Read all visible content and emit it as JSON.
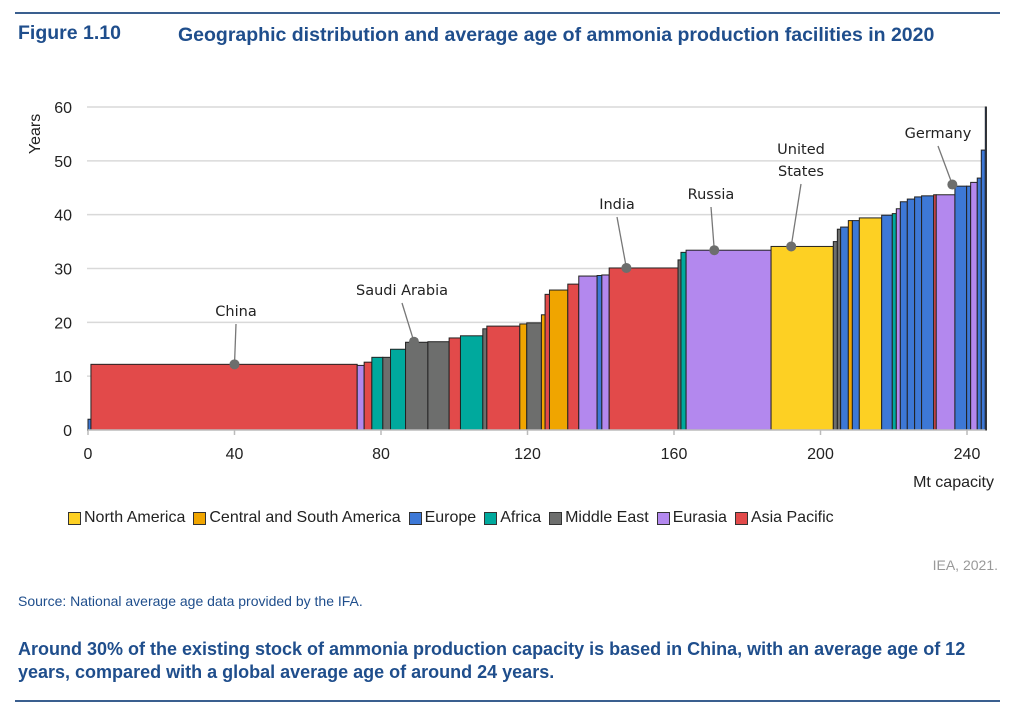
{
  "figure": {
    "number": "Figure 1.10",
    "title": "Geographic distribution and average age of ammonia production facilities in 2020"
  },
  "chart_data": {
    "type": "bar",
    "subtype": "variable-width (Marimekko-style) bars sorted by age",
    "ylabel": "Years",
    "xlabel": "Mt capacity",
    "xlim": [
      0,
      245
    ],
    "ylim": [
      0,
      60
    ],
    "x_ticks": [
      0,
      40,
      80,
      120,
      160,
      200,
      240
    ],
    "y_ticks": [
      0,
      10,
      20,
      30,
      40,
      50,
      60
    ],
    "grid": "horizontal",
    "legend_position": "bottom",
    "regions": [
      {
        "key": "NA",
        "name": "North America",
        "color": "#fdd023"
      },
      {
        "key": "CSA",
        "name": "Central and South America",
        "color": "#f0a500"
      },
      {
        "key": "EU",
        "name": "Europe",
        "color": "#3d78d6"
      },
      {
        "key": "AF",
        "name": "Africa",
        "color": "#00a99d"
      },
      {
        "key": "ME",
        "name": "Middle East",
        "color": "#6d6e6d"
      },
      {
        "key": "EA",
        "name": "Eurasia",
        "color": "#b388ee"
      },
      {
        "key": "AP",
        "name": "Asia Pacific",
        "color": "#e24a4a"
      }
    ],
    "bars_columns": [
      "start_mt",
      "end_mt",
      "age_years",
      "region"
    ],
    "bars": [
      [
        0,
        0.8,
        2.0,
        "EU"
      ],
      [
        0.8,
        73.5,
        12.2,
        "AP"
      ],
      [
        73.5,
        75.4,
        12.0,
        "EA"
      ],
      [
        75.4,
        77.5,
        12.6,
        "AP"
      ],
      [
        77.5,
        80.5,
        13.5,
        "AF"
      ],
      [
        80.5,
        82.6,
        13.5,
        "ME"
      ],
      [
        82.6,
        86.7,
        15.0,
        "AF"
      ],
      [
        86.7,
        92.8,
        16.3,
        "ME"
      ],
      [
        92.8,
        98.6,
        16.4,
        "ME"
      ],
      [
        98.6,
        101.7,
        17.1,
        "AP"
      ],
      [
        101.7,
        107.8,
        17.5,
        "AF"
      ],
      [
        107.8,
        108.9,
        18.8,
        "ME"
      ],
      [
        108.9,
        117.9,
        19.3,
        "AP"
      ],
      [
        117.9,
        119.8,
        19.7,
        "CSA"
      ],
      [
        119.8,
        123.8,
        19.9,
        "ME"
      ],
      [
        123.8,
        124.8,
        21.4,
        "CSA"
      ],
      [
        124.8,
        126.0,
        25.2,
        "AP"
      ],
      [
        126.0,
        131.0,
        26.0,
        "CSA"
      ],
      [
        131.0,
        134.0,
        27.1,
        "AP"
      ],
      [
        134.0,
        139.0,
        28.6,
        "EA"
      ],
      [
        139.0,
        140.3,
        28.7,
        "EU"
      ],
      [
        140.3,
        142.3,
        28.8,
        "EA"
      ],
      [
        142.3,
        161.1,
        30.1,
        "AP"
      ],
      [
        161.1,
        161.9,
        31.6,
        "ME"
      ],
      [
        161.9,
        163.3,
        33.0,
        "AF"
      ],
      [
        163.3,
        186.5,
        33.4,
        "EA"
      ],
      [
        186.5,
        203.5,
        34.1,
        "NA"
      ],
      [
        203.5,
        204.6,
        35.0,
        "ME"
      ],
      [
        204.6,
        205.5,
        37.3,
        "ME"
      ],
      [
        205.5,
        207.6,
        37.7,
        "EU"
      ],
      [
        207.6,
        208.7,
        38.9,
        "CSA"
      ],
      [
        208.7,
        210.6,
        38.9,
        "EU"
      ],
      [
        210.6,
        216.7,
        39.4,
        "NA"
      ],
      [
        216.7,
        219.6,
        39.9,
        "EU"
      ],
      [
        219.6,
        220.7,
        40.2,
        "AF"
      ],
      [
        220.7,
        221.8,
        41.1,
        "EA"
      ],
      [
        221.8,
        223.7,
        42.4,
        "EU"
      ],
      [
        223.7,
        225.7,
        42.9,
        "EU"
      ],
      [
        225.7,
        227.6,
        43.3,
        "EU"
      ],
      [
        227.6,
        230.9,
        43.5,
        "EU"
      ],
      [
        230.9,
        231.6,
        43.7,
        "AP"
      ],
      [
        231.6,
        236.7,
        43.7,
        "EA"
      ],
      [
        236.7,
        239.9,
        45.3,
        "EU"
      ],
      [
        239.9,
        241.0,
        45.3,
        "EU"
      ],
      [
        241.0,
        242.8,
        46.0,
        "EA"
      ],
      [
        242.8,
        243.9,
        46.8,
        "EU"
      ],
      [
        243.9,
        245.0,
        52.0,
        "EU"
      ],
      [
        245.0,
        245.3,
        60.0,
        "EU"
      ]
    ],
    "annotations": [
      {
        "label": "China",
        "x": 40,
        "y": 12.2
      },
      {
        "label": "Saudi Arabia",
        "x": 89,
        "y": 16.4
      },
      {
        "label": "India",
        "x": 147,
        "y": 30.1
      },
      {
        "label": "Russia",
        "x": 171,
        "y": 33.4
      },
      {
        "label": "United States",
        "x": 192,
        "y": 34.1
      },
      {
        "label": "Germany",
        "x": 236,
        "y": 45.6
      }
    ]
  },
  "credit": "IEA, 2021.",
  "source": "Source: National average age data provided by the IFA.",
  "summary": "Around 30% of the existing stock of ammonia production capacity is based in China, with an average age of 12 years, compared with a global average age of around 24 years."
}
